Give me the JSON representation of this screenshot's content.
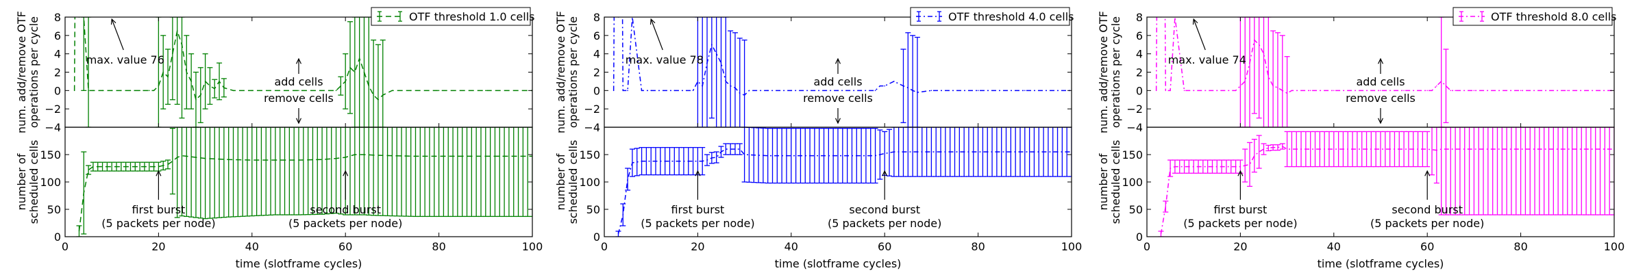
{
  "figure": {
    "xlabel": "time (slotframe cycles)",
    "ylabel_top_line1": "num. add/remove OTF",
    "ylabel_top_line2": "operations per cycle",
    "ylabel_bottom_line1": "number of",
    "ylabel_bottom_line2": "scheduled cells",
    "annotation_add": "add cells",
    "annotation_remove": "remove cells",
    "annotation_first_burst_line1": "first burst",
    "annotation_first_burst_line2": "(5 packets per node)",
    "annotation_second_burst_line1": "second burst",
    "annotation_second_burst_line2": "(5 packets per node)"
  },
  "chart_data": [
    {
      "type": "line",
      "color": "#008000",
      "dash": "dashed",
      "legend": "OTF threshold 1.0 cells",
      "max_label": "max. value 76",
      "x_ticks": [
        "0",
        "20",
        "40",
        "60",
        "80",
        "100"
      ],
      "top_y_ticks": [
        "8",
        "6",
        "4",
        "2",
        "0",
        "−2",
        "−4"
      ],
      "bottom_y_ticks": [
        "150",
        "100",
        "50",
        "0"
      ],
      "xlim": [
        0,
        100
      ],
      "top_ylim": [
        -4,
        8
      ],
      "bottom_ylim": [
        0,
        200
      ],
      "top_series": {
        "x": [
          2,
          3,
          4,
          5,
          6,
          8,
          10,
          12,
          14,
          16,
          18,
          19,
          20,
          21,
          22,
          23,
          24,
          25,
          26,
          27,
          28,
          29,
          30,
          31,
          32,
          33,
          34,
          36,
          40,
          50,
          58,
          59,
          60,
          61,
          62,
          63,
          64,
          65,
          66,
          67,
          68,
          70,
          74,
          80,
          90,
          100
        ],
        "y": [
          0,
          76,
          8,
          0,
          0,
          0,
          0,
          0,
          0,
          0,
          0,
          0,
          0.5,
          2,
          1.5,
          4,
          6.5,
          5,
          2,
          1,
          -1,
          -0.5,
          1,
          0.5,
          0.2,
          1,
          0.3,
          0,
          0,
          0,
          0,
          0.5,
          1,
          2.5,
          2,
          3.5,
          2,
          0.5,
          -0.5,
          -1,
          -0.5,
          0,
          0,
          0,
          0,
          0
        ],
        "err": [
          0,
          0,
          8,
          8,
          0,
          0,
          0,
          0,
          0,
          0,
          0,
          0,
          8,
          4,
          3,
          5,
          8,
          8,
          4,
          3,
          3,
          3,
          3,
          2,
          1,
          2,
          1,
          0,
          0,
          0,
          0,
          1,
          3,
          5,
          8,
          8,
          8,
          8,
          6,
          6,
          6,
          0,
          0,
          0,
          0,
          0
        ]
      },
      "bottom_series": {
        "x": [
          3,
          4,
          5,
          6,
          8,
          10,
          12,
          14,
          16,
          18,
          20,
          22,
          23,
          24,
          25,
          26,
          28,
          30,
          35,
          40,
          45,
          50,
          55,
          58,
          60,
          62,
          64,
          66,
          70,
          75,
          80,
          85,
          90,
          95,
          100
        ],
        "y": [
          10,
          80,
          122,
          128,
          128,
          128,
          128,
          128,
          128,
          128,
          128,
          132,
          138,
          145,
          148,
          147,
          145,
          143,
          141,
          140,
          140,
          140,
          141,
          143,
          145,
          150,
          150,
          149,
          148,
          147,
          147,
          147,
          147,
          147,
          147
        ],
        "err": [
          10,
          75,
          8,
          8,
          8,
          8,
          8,
          8,
          8,
          8,
          8,
          8,
          60,
          110,
          110,
          110,
          110,
          110,
          105,
          102,
          100,
          100,
          100,
          100,
          105,
          110,
          110,
          110,
          110,
          110,
          110,
          110,
          110,
          110,
          110
        ]
      }
    },
    {
      "type": "line",
      "color": "#0000ff",
      "dash": "dashdot",
      "legend": "OTF threshold 4.0 cells",
      "max_label": "max. value 78",
      "x_ticks": [
        "0",
        "20",
        "40",
        "60",
        "80",
        "100"
      ],
      "top_y_ticks": [
        "8",
        "6",
        "4",
        "2",
        "0",
        "−2",
        "−4"
      ],
      "bottom_y_ticks": [
        "150",
        "100",
        "50",
        "0"
      ],
      "xlim": [
        0,
        100
      ],
      "top_ylim": [
        -4,
        8
      ],
      "bottom_ylim": [
        0,
        200
      ],
      "top_series": {
        "x": [
          2,
          3,
          4,
          5,
          6,
          8,
          10,
          15,
          19,
          20,
          21,
          22,
          23,
          24,
          25,
          26,
          27,
          28,
          29,
          30,
          31,
          35,
          40,
          50,
          55,
          58,
          59,
          60,
          62,
          64,
          65,
          66,
          67,
          70,
          80,
          90,
          100
        ],
        "y": [
          0,
          78,
          0,
          0,
          8,
          0,
          0,
          0,
          0,
          1,
          0.5,
          3,
          5,
          4,
          3,
          1,
          0.5,
          0.3,
          -0.3,
          -0.5,
          0,
          0,
          0,
          0,
          0,
          0,
          0.5,
          0.5,
          1,
          0.5,
          0.3,
          0,
          -0.2,
          0,
          0,
          0,
          0
        ],
        "err": [
          0,
          0,
          0,
          0,
          0,
          0,
          0,
          0,
          0,
          8,
          8,
          8,
          8,
          8,
          8,
          8,
          6,
          6,
          6,
          6,
          0,
          0,
          0,
          0,
          0,
          0,
          0,
          0,
          0,
          4,
          6,
          6,
          6,
          0,
          0,
          0,
          0
        ]
      },
      "bottom_series": {
        "x": [
          3,
          4,
          5,
          6,
          8,
          10,
          12,
          14,
          16,
          18,
          19,
          20,
          21,
          22,
          23,
          24,
          25,
          26,
          27,
          28,
          29,
          30,
          35,
          40,
          45,
          50,
          55,
          58,
          60,
          62,
          64,
          66,
          70,
          75,
          80,
          85,
          90,
          95,
          100
        ],
        "y": [
          5,
          40,
          105,
          135,
          138,
          138,
          138,
          138,
          138,
          138,
          138,
          138,
          138,
          140,
          144,
          145,
          155,
          160,
          160,
          160,
          160,
          150,
          148,
          148,
          148,
          148,
          148,
          148,
          152,
          155,
          155,
          155,
          155,
          155,
          155,
          155,
          155,
          155,
          155
        ],
        "err": [
          5,
          20,
          20,
          25,
          25,
          25,
          25,
          25,
          25,
          25,
          25,
          25,
          25,
          10,
          10,
          10,
          10,
          10,
          10,
          10,
          10,
          50,
          50,
          50,
          50,
          50,
          50,
          50,
          40,
          45,
          45,
          45,
          45,
          45,
          45,
          45,
          45,
          45,
          45
        ]
      }
    },
    {
      "type": "line",
      "color": "#ff00ff",
      "dash": "dashdot",
      "legend": "OTF threshold 8.0 cells",
      "max_label": "max. value 74",
      "x_ticks": [
        "0",
        "20",
        "40",
        "60",
        "80",
        "100"
      ],
      "top_y_ticks": [
        "8",
        "6",
        "4",
        "2",
        "0",
        "−2",
        "−4"
      ],
      "bottom_y_ticks": [
        "150",
        "100",
        "50",
        "0"
      ],
      "xlim": [
        0,
        100
      ],
      "top_ylim": [
        -4,
        8
      ],
      "bottom_ylim": [
        0,
        200
      ],
      "top_series": {
        "x": [
          2,
          3,
          4,
          5,
          6,
          8,
          10,
          15,
          19,
          20,
          21,
          22,
          23,
          24,
          25,
          26,
          27,
          28,
          29,
          30,
          31,
          35,
          40,
          50,
          55,
          60,
          61,
          62,
          63,
          64,
          65,
          66,
          70,
          80,
          90,
          100
        ],
        "y": [
          0,
          74,
          0,
          0,
          8,
          0,
          0,
          0,
          0,
          0.5,
          1,
          3,
          5.5,
          5,
          4,
          1.5,
          0.5,
          0.3,
          0,
          -0.3,
          0,
          0,
          0,
          0,
          0,
          0,
          0,
          0.5,
          1,
          0.5,
          0,
          0,
          0,
          0,
          0,
          0
        ],
        "err": [
          0,
          0,
          0,
          0,
          0,
          0,
          0,
          0,
          0,
          8,
          8,
          8,
          8,
          8,
          8,
          8,
          6,
          6,
          6,
          4,
          0,
          0,
          0,
          0,
          0,
          0,
          0,
          0,
          8,
          4,
          0,
          0,
          0,
          0,
          0,
          0
        ]
      },
      "bottom_series": {
        "x": [
          3,
          4,
          5,
          6,
          8,
          10,
          12,
          14,
          16,
          18,
          20,
          21,
          22,
          23,
          24,
          25,
          26,
          27,
          28,
          29,
          30,
          35,
          40,
          45,
          50,
          55,
          58,
          60,
          62,
          63,
          64,
          66,
          70,
          75,
          80,
          85,
          90,
          95,
          100
        ],
        "y": [
          5,
          55,
          125,
          128,
          128,
          128,
          128,
          128,
          128,
          128,
          128,
          130,
          132,
          148,
          155,
          160,
          162,
          163,
          163,
          165,
          160,
          160,
          160,
          160,
          160,
          160,
          160,
          160,
          158,
          160,
          160,
          160,
          160,
          160,
          160,
          160,
          160,
          160,
          160
        ],
        "err": [
          5,
          10,
          15,
          12,
          12,
          12,
          12,
          12,
          12,
          12,
          12,
          30,
          40,
          30,
          30,
          10,
          5,
          5,
          5,
          5,
          32,
          32,
          32,
          32,
          32,
          32,
          32,
          32,
          60,
          120,
          120,
          120,
          120,
          120,
          120,
          120,
          120,
          120,
          120
        ]
      }
    }
  ]
}
